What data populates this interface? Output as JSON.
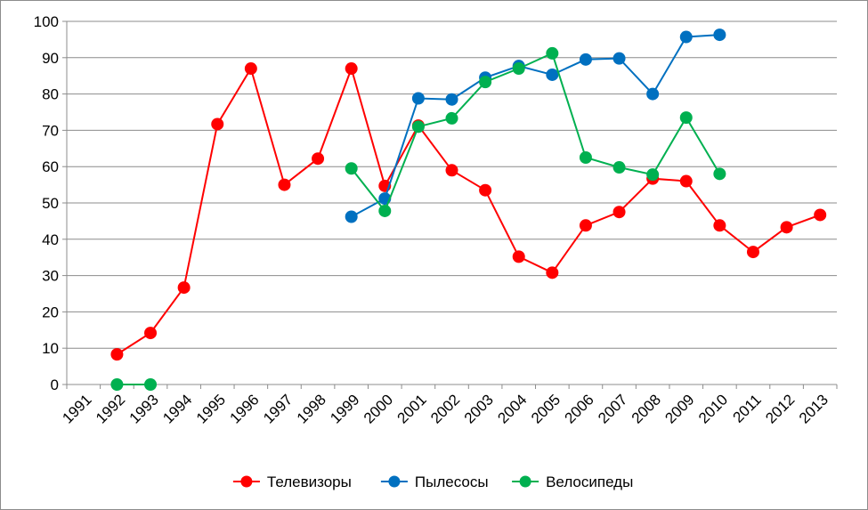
{
  "chart_data": {
    "type": "line",
    "title": "",
    "xlabel": "",
    "ylabel": "",
    "x": [
      "1991",
      "1992",
      "1993",
      "1994",
      "1995",
      "1996",
      "1997",
      "1998",
      "1999",
      "2000",
      "2001",
      "2002",
      "2003",
      "2004",
      "2005",
      "2006",
      "2007",
      "2008",
      "2009",
      "2010",
      "2011",
      "2012",
      "2013"
    ],
    "ylim": [
      0,
      100
    ],
    "yticks": [
      "0",
      "10",
      "20",
      "30",
      "40",
      "50",
      "60",
      "70",
      "80",
      "90",
      "100"
    ],
    "grid": "horizontal",
    "legend": "bottom",
    "series": [
      {
        "name": "Телевизоры",
        "color": "#ff0000",
        "values": [
          null,
          8.3,
          14.2,
          26.7,
          71.7,
          87,
          55,
          62.2,
          87,
          54.7,
          71.3,
          59,
          53.5,
          35.2,
          30.8,
          43.8,
          47.5,
          56.7,
          56,
          43.8,
          36.5,
          43.3,
          46.7
        ]
      },
      {
        "name": "Пылесосы",
        "color": "#0070c0",
        "values": [
          null,
          null,
          null,
          null,
          null,
          null,
          null,
          null,
          46.2,
          51.2,
          78.8,
          78.5,
          84.5,
          87.7,
          85.3,
          89.5,
          89.8,
          80,
          95.7,
          96.3,
          null,
          null,
          null
        ]
      },
      {
        "name": "Велосипеды",
        "color": "#00b050",
        "values": [
          null,
          0,
          0,
          null,
          null,
          null,
          null,
          null,
          59.5,
          47.8,
          71,
          73.3,
          83.3,
          87,
          91.2,
          62.5,
          59.8,
          57.8,
          73.5,
          58,
          null,
          null,
          null
        ]
      }
    ]
  }
}
